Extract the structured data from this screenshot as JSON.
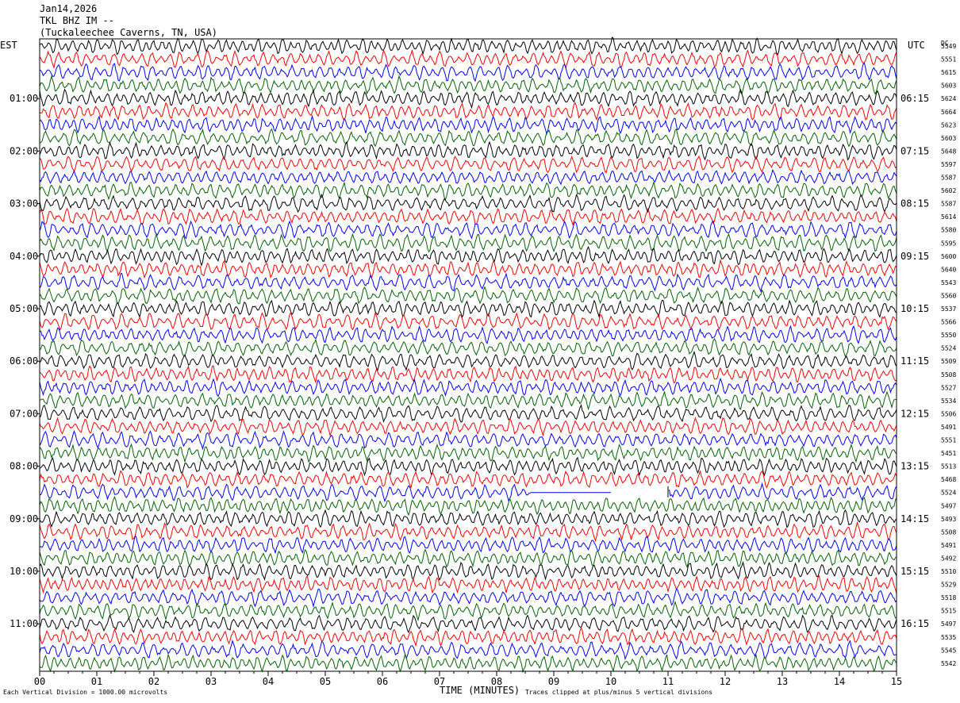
{
  "header": {
    "date": "Jan14,2026",
    "station": "TKL BHZ IM --",
    "location": "(Tuckaleechee Caverns, TN, USA)"
  },
  "axes": {
    "left_tz": "EST",
    "right_tz": "UTC",
    "dc_label": "DC",
    "x_title": "TIME (MINUTES)"
  },
  "footer": {
    "left": "Each Vertical Division = 1000.00 microvolts",
    "right": "Traces clipped at plus/minus 5 vertical divisions"
  },
  "colors": {
    "trace_cycle": [
      "#000000",
      "#ff0000",
      "#0000ff",
      "#006400"
    ]
  },
  "chart_data": {
    "type": "line",
    "title": "",
    "xlabel": "TIME (MINUTES)",
    "xlim": [
      0,
      15
    ],
    "x_ticks": [
      "00",
      "01",
      "02",
      "03",
      "04",
      "05",
      "06",
      "07",
      "08",
      "09",
      "10",
      "11",
      "12",
      "13",
      "14",
      "15"
    ],
    "minutes_per_trace": 15,
    "left_hour_labels": [
      "01:00",
      "02:00",
      "03:00",
      "04:00",
      "05:00",
      "06:00",
      "07:00",
      "08:00",
      "09:00",
      "10:00",
      "11:00"
    ],
    "right_hour_labels": [
      "06:15",
      "07:15",
      "08:15",
      "09:15",
      "10:15",
      "11:15",
      "12:15",
      "13:15",
      "14:15",
      "15:15",
      "16:15"
    ],
    "dc_values": [
      "5549",
      "5551",
      "5615",
      "5603",
      "5624",
      "5664",
      "5623",
      "5603",
      "5648",
      "5597",
      "5587",
      "5602",
      "5587",
      "5614",
      "5580",
      "5595",
      "5600",
      "5640",
      "5543",
      "5560",
      "5537",
      "5566",
      "5550",
      "5524",
      "5509",
      "5508",
      "5527",
      "5534",
      "5506",
      "5491",
      "5551",
      "5451",
      "5513",
      "5468",
      "5524",
      "5497",
      "5493",
      "5508",
      "5491",
      "5492",
      "5510",
      "5529",
      "5518",
      "5515",
      "5497",
      "5535",
      "5545",
      "5542"
    ],
    "gap": {
      "trace_index": 34,
      "start_minute": 8.6,
      "end_minute": 11.0,
      "flat_until_minute": 10.0
    }
  }
}
